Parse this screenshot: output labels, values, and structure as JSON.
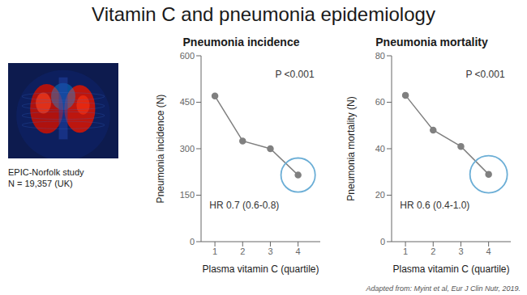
{
  "title": "Vitamin C and pneumonia epidemiology",
  "subtitle": "Adapted from: Myint et al, Eur J Clin Nutr, 2019.",
  "annotations": [
    "EPIC-Norfolk study\nN = 19,357 (UK)"
  ],
  "chart_data": [
    {
      "type": "line",
      "title": "Pneumonia incidence",
      "x": [
        1,
        2,
        3,
        4
      ],
      "values": [
        470,
        325,
        300,
        215
      ],
      "xlabel": "Plasma vitamin C (quartile)",
      "ylabel": "Pneumonia incidence (N)",
      "xlim": [
        0.5,
        4.8
      ],
      "xticks": [
        1,
        2,
        3,
        4
      ],
      "ylim": [
        0,
        600
      ],
      "yticks": [
        0,
        150,
        300,
        450,
        600
      ],
      "color": "#808080",
      "marker": "o",
      "grid": false,
      "annotations": [
        "P <0.001",
        "HR 0.7 (0.6-0.8)"
      ],
      "highlight": {
        "x": 4.0,
        "y": 215,
        "radius": 55,
        "color": "#6baed6"
      }
    },
    {
      "type": "line",
      "title": "Pneumonia mortality",
      "x": [
        1,
        2,
        3,
        4
      ],
      "values": [
        63,
        48,
        41,
        29
      ],
      "xlabel": "Plasma vitamin C (quartile)",
      "ylabel": "Pneumonia mortality (N)",
      "xlim": [
        0.5,
        4.8
      ],
      "xticks": [
        1,
        2,
        3,
        4
      ],
      "ylim": [
        0,
        80
      ],
      "yticks": [
        0,
        20,
        40,
        60,
        80
      ],
      "color": "#808080",
      "marker": "o",
      "grid": false,
      "annotations": [
        "P <0.001",
        "HR 0.6 (0.4-1.0)"
      ],
      "highlight": {
        "x": 4.0,
        "y": 29,
        "radius": 8,
        "color": "#6baed6"
      }
    }
  ]
}
